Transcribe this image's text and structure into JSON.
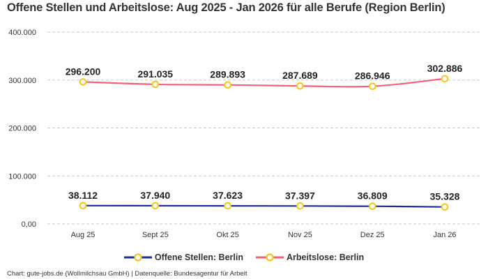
{
  "chart_data": {
    "type": "line",
    "title": "Offene Stellen und Arbeitslose: Aug 2025 - Jan 2026 für alle Berufe (Region Berlin)",
    "categories": [
      "Aug 25",
      "Sept 25",
      "Okt 25",
      "Nov 25",
      "Dez 25",
      "Jan 26"
    ],
    "y_ticks": [
      "0,00",
      "100.000",
      "200.000",
      "300.000",
      "400.000"
    ],
    "ylim": [
      0,
      400000
    ],
    "grid": true,
    "legend_position": "bottom",
    "series": [
      {
        "name": "Offene Stellen: Berlin",
        "color": "#1a2f8f",
        "marker_color": "#f5c518",
        "values": [
          38112,
          37940,
          37623,
          37397,
          36809,
          35328
        ],
        "labels": [
          "38.112",
          "37.940",
          "37.623",
          "37.397",
          "36.809",
          "35.328"
        ]
      },
      {
        "name": "Arbeitslose: Berlin",
        "color": "#f4607a",
        "marker_color": "#f5c518",
        "values": [
          296200,
          291035,
          289893,
          287689,
          286946,
          302886
        ],
        "labels": [
          "296.200",
          "291.035",
          "289.893",
          "287.689",
          "286.946",
          "302.886"
        ]
      }
    ]
  },
  "credit": "Chart: gute-jobs.de (Wollmilchsau GmbH) | Datenquelle: Bundesagentur für Arbeit"
}
